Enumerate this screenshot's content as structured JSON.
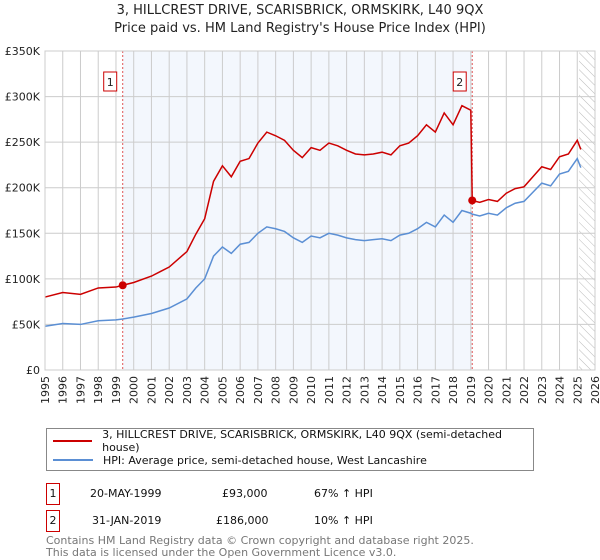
{
  "chart_data": {
    "type": "line",
    "title": "3, HILLCREST DRIVE, SCARISBRICK, ORMSKIRK, L40 9QX",
    "subtitle": "Price paid vs. HM Land Registry's House Price Index (HPI)",
    "xlim": [
      1995,
      2026
    ],
    "ylim": [
      0,
      350000
    ],
    "y_ticks": [
      0,
      50000,
      100000,
      150000,
      200000,
      250000,
      300000,
      350000
    ],
    "y_tick_labels": [
      "£0",
      "£50K",
      "£100K",
      "£150K",
      "£200K",
      "£250K",
      "£300K",
      "£350K"
    ],
    "x_ticks": [
      1995,
      1996,
      1997,
      1998,
      1999,
      2000,
      2001,
      2002,
      2003,
      2004,
      2005,
      2006,
      2007,
      2008,
      2009,
      2010,
      2011,
      2012,
      2013,
      2014,
      2015,
      2016,
      2017,
      2018,
      2019,
      2020,
      2021,
      2022,
      2023,
      2024,
      2025,
      2026
    ],
    "grid": true,
    "shaded_range": [
      1999.38,
      2019.08
    ],
    "hatched_from": 2025.1,
    "series": [
      {
        "name": "3, HILLCREST DRIVE, SCARISBRICK, ORMSKIRK, L40 9QX (semi-detached house)",
        "color": "#cc0000",
        "x": [
          1995,
          1996,
          1997,
          1998,
          1999,
          1999.38,
          2000,
          2001,
          2001.5,
          2002,
          2003,
          2003.5,
          2004,
          2004.5,
          2005,
          2005.5,
          2006,
          2006.5,
          2007,
          2007.5,
          2008,
          2008.5,
          2009,
          2009.5,
          2010,
          2010.5,
          2011,
          2011.5,
          2012,
          2012.5,
          2013,
          2013.5,
          2014,
          2014.5,
          2015,
          2015.5,
          2016,
          2016.5,
          2017,
          2017.5,
          2018,
          2018.5,
          2019.0,
          2019.08,
          2019.5,
          2020,
          2020.5,
          2021,
          2021.5,
          2022,
          2022.5,
          2023,
          2023.5,
          2024,
          2024.5,
          2025.0,
          2025.2
        ],
        "y": [
          80000,
          85000,
          83000,
          90000,
          91000,
          93000,
          96000,
          103000,
          108000,
          113000,
          130000,
          149000,
          166000,
          207000,
          224000,
          212000,
          229000,
          232000,
          249000,
          261000,
          257000,
          252000,
          241000,
          233000,
          244000,
          241000,
          249000,
          246000,
          241000,
          237000,
          236000,
          237000,
          239000,
          236000,
          246000,
          249000,
          257000,
          269000,
          261000,
          282000,
          269000,
          290000,
          285000,
          186000,
          184000,
          187000,
          185000,
          194000,
          199000,
          201000,
          212000,
          223000,
          220000,
          234000,
          237000,
          252000,
          242000
        ]
      },
      {
        "name": "HPI: Average price, semi-detached house, West Lancashire",
        "color": "#5b8fd4",
        "x": [
          1995,
          1996,
          1997,
          1998,
          1999,
          1999.38,
          2000,
          2001,
          2001.5,
          2002,
          2003,
          2003.5,
          2004,
          2004.5,
          2005,
          2005.5,
          2006,
          2006.5,
          2007,
          2007.5,
          2008,
          2008.5,
          2009,
          2009.5,
          2010,
          2010.5,
          2011,
          2011.5,
          2012,
          2012.5,
          2013,
          2013.5,
          2014,
          2014.5,
          2015,
          2015.5,
          2016,
          2016.5,
          2017,
          2017.5,
          2018,
          2018.5,
          2019.0,
          2019.08,
          2019.5,
          2020,
          2020.5,
          2021,
          2021.5,
          2022,
          2022.5,
          2023,
          2023.5,
          2024,
          2024.5,
          2025.0,
          2025.2
        ],
        "y": [
          48000,
          51000,
          50000,
          54000,
          55000,
          56000,
          58000,
          62000,
          65000,
          68000,
          78000,
          90000,
          100000,
          125000,
          135000,
          128000,
          138000,
          140000,
          150000,
          157000,
          155000,
          152000,
          145000,
          140000,
          147000,
          145000,
          150000,
          148000,
          145000,
          143000,
          142000,
          143000,
          144000,
          142000,
          148000,
          150000,
          155000,
          162000,
          157000,
          170000,
          162000,
          175000,
          172000,
          171000,
          169000,
          172000,
          170000,
          178000,
          183000,
          185000,
          195000,
          205000,
          202000,
          215000,
          218000,
          232000,
          222000
        ]
      }
    ],
    "annotations": [
      {
        "label": "1",
        "x": 1999.38,
        "y": 93000
      },
      {
        "label": "2",
        "x": 2019.08,
        "y": 186000
      }
    ]
  },
  "legend": [
    {
      "label": "3, HILLCREST DRIVE, SCARISBRICK, ORMSKIRK, L40 9QX (semi-detached house)",
      "color": "#cc0000"
    },
    {
      "label": "HPI: Average price, semi-detached house, West Lancashire",
      "color": "#5b8fd4"
    }
  ],
  "sales": [
    {
      "num": "1",
      "date": "20-MAY-1999",
      "price": "£93,000",
      "hpi": "67% ↑ HPI"
    },
    {
      "num": "2",
      "date": "31-JAN-2019",
      "price": "£186,000",
      "hpi": "10% ↑ HPI"
    }
  ],
  "footer": {
    "line1": "Contains HM Land Registry data © Crown copyright and database right 2025.",
    "line2": "This data is licensed under the Open Government Licence v3.0."
  }
}
